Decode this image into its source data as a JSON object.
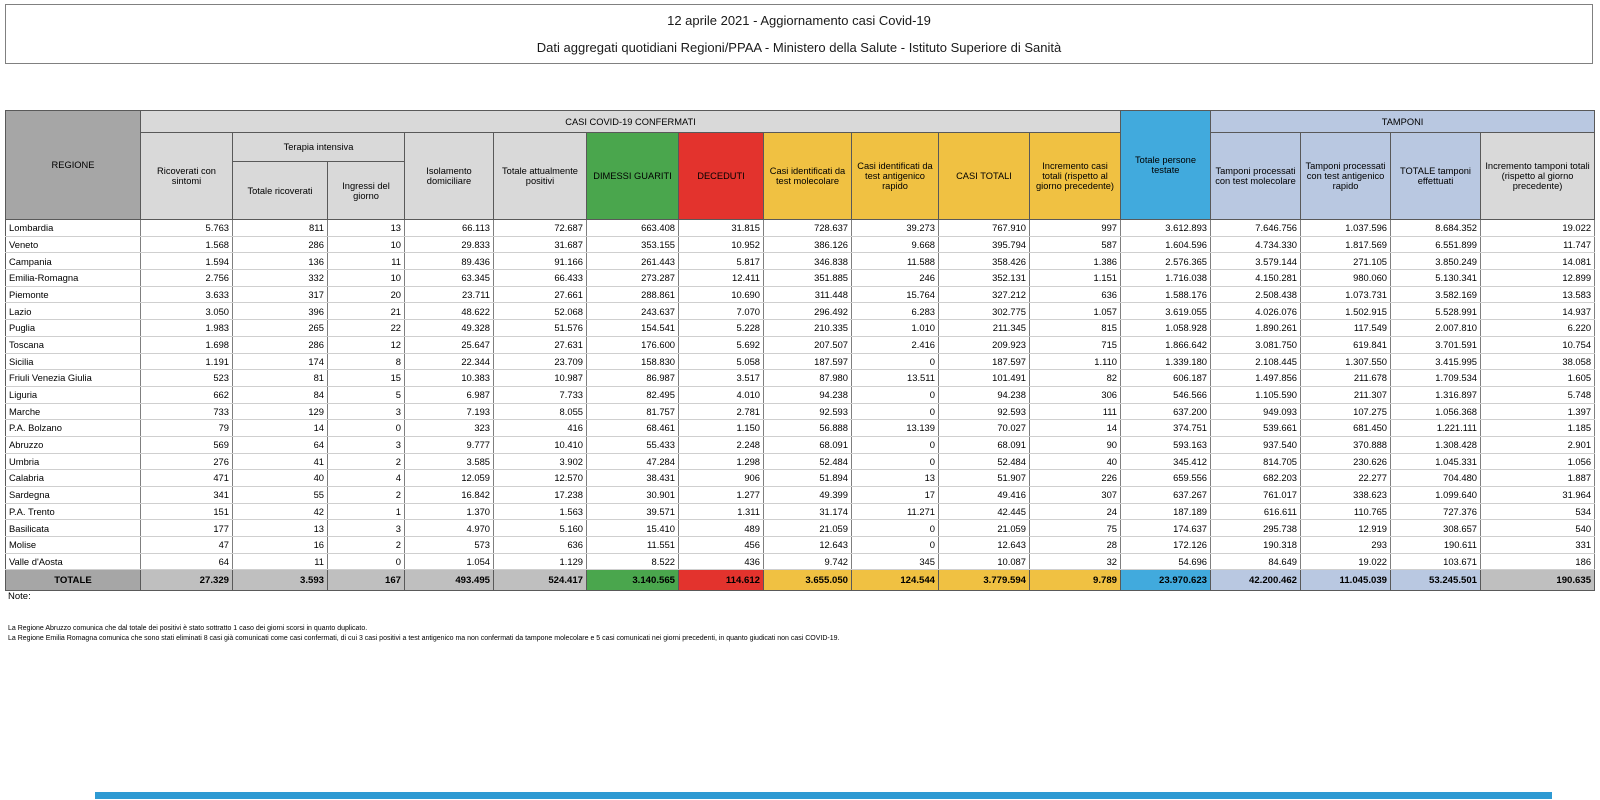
{
  "title": {
    "line1": "12 aprile 2021 - Aggiornamento casi Covid-19",
    "line2": "Dati aggregati quotidiani Regioni/PPAA - Ministero della Salute - Istituto Superiore di Sanità"
  },
  "colors": {
    "header_dark_gray": "#a6a6a6",
    "header_light_gray": "#d9d9d9",
    "green": "#4aa64d",
    "red": "#e3332d",
    "yellow": "#f0c142",
    "blue": "#41aadd",
    "periwinkle": "#b9c8e1",
    "totale_gray": "#bfbfbf",
    "bottom_bar_blue": "#2e9ad3"
  },
  "table": {
    "headers": {
      "regione": "REGIONE",
      "casi_group": "CASI COVID-19 CONFERMATI",
      "tamponi_group": "TAMPONI",
      "ricoverati": "Ricoverati con sintomi",
      "terapia_intensiva": "Terapia intensiva",
      "terapia_totale": "Totale ricoverati",
      "terapia_ingressi": "Ingressi del giorno",
      "isolamento": "Isolamento domiciliare",
      "attualmente_positivi": "Totale attualmente positivi",
      "dimessi": "DIMESSI GUARITI",
      "deceduti": "DECEDUTI",
      "casi_molecolare": "Casi identificati da test molecolare",
      "casi_antigenico": "Casi identificati da test antigenico rapido",
      "casi_totali": "CASI TOTALI",
      "incremento_casi": "Incremento casi totali (rispetto al giorno precedente)",
      "persone_testate": "Totale persone testate",
      "tamponi_molecolare": "Tamponi processati con test molecolare",
      "tamponi_antigenico": "Tamponi processati con test antigenico rapido",
      "tamponi_totale": "TOTALE tamponi effettuati",
      "incremento_tamponi": "Incremento tamponi totali (rispetto al giorno precedente)"
    },
    "rows": [
      {
        "regione": "Lombardia",
        "values": [
          "5.763",
          "811",
          "13",
          "66.113",
          "72.687",
          "663.408",
          "31.815",
          "728.637",
          "39.273",
          "767.910",
          "997",
          "3.612.893",
          "7.646.756",
          "1.037.596",
          "8.684.352",
          "19.022"
        ]
      },
      {
        "regione": "Veneto",
        "values": [
          "1.568",
          "286",
          "10",
          "29.833",
          "31.687",
          "353.155",
          "10.952",
          "386.126",
          "9.668",
          "395.794",
          "587",
          "1.604.596",
          "4.734.330",
          "1.817.569",
          "6.551.899",
          "11.747"
        ]
      },
      {
        "regione": "Campania",
        "values": [
          "1.594",
          "136",
          "11",
          "89.436",
          "91.166",
          "261.443",
          "5.817",
          "346.838",
          "11.588",
          "358.426",
          "1.386",
          "2.576.365",
          "3.579.144",
          "271.105",
          "3.850.249",
          "14.081"
        ]
      },
      {
        "regione": "Emilia-Romagna",
        "values": [
          "2.756",
          "332",
          "10",
          "63.345",
          "66.433",
          "273.287",
          "12.411",
          "351.885",
          "246",
          "352.131",
          "1.151",
          "1.716.038",
          "4.150.281",
          "980.060",
          "5.130.341",
          "12.899"
        ]
      },
      {
        "regione": "Piemonte",
        "values": [
          "3.633",
          "317",
          "20",
          "23.711",
          "27.661",
          "288.861",
          "10.690",
          "311.448",
          "15.764",
          "327.212",
          "636",
          "1.588.176",
          "2.508.438",
          "1.073.731",
          "3.582.169",
          "13.583"
        ]
      },
      {
        "regione": "Lazio",
        "values": [
          "3.050",
          "396",
          "21",
          "48.622",
          "52.068",
          "243.637",
          "7.070",
          "296.492",
          "6.283",
          "302.775",
          "1.057",
          "3.619.055",
          "4.026.076",
          "1.502.915",
          "5.528.991",
          "14.937"
        ]
      },
      {
        "regione": "Puglia",
        "values": [
          "1.983",
          "265",
          "22",
          "49.328",
          "51.576",
          "154.541",
          "5.228",
          "210.335",
          "1.010",
          "211.345",
          "815",
          "1.058.928",
          "1.890.261",
          "117.549",
          "2.007.810",
          "6.220"
        ]
      },
      {
        "regione": "Toscana",
        "values": [
          "1.698",
          "286",
          "12",
          "25.647",
          "27.631",
          "176.600",
          "5.692",
          "207.507",
          "2.416",
          "209.923",
          "715",
          "1.866.642",
          "3.081.750",
          "619.841",
          "3.701.591",
          "10.754"
        ]
      },
      {
        "regione": "Sicilia",
        "values": [
          "1.191",
          "174",
          "8",
          "22.344",
          "23.709",
          "158.830",
          "5.058",
          "187.597",
          "0",
          "187.597",
          "1.110",
          "1.339.180",
          "2.108.445",
          "1.307.550",
          "3.415.995",
          "38.058"
        ]
      },
      {
        "regione": "Friuli Venezia Giulia",
        "values": [
          "523",
          "81",
          "15",
          "10.383",
          "10.987",
          "86.987",
          "3.517",
          "87.980",
          "13.511",
          "101.491",
          "82",
          "606.187",
          "1.497.856",
          "211.678",
          "1.709.534",
          "1.605"
        ]
      },
      {
        "regione": "Liguria",
        "values": [
          "662",
          "84",
          "5",
          "6.987",
          "7.733",
          "82.495",
          "4.010",
          "94.238",
          "0",
          "94.238",
          "306",
          "546.566",
          "1.105.590",
          "211.307",
          "1.316.897",
          "5.748"
        ]
      },
      {
        "regione": "Marche",
        "values": [
          "733",
          "129",
          "3",
          "7.193",
          "8.055",
          "81.757",
          "2.781",
          "92.593",
          "0",
          "92.593",
          "111",
          "637.200",
          "949.093",
          "107.275",
          "1.056.368",
          "1.397"
        ]
      },
      {
        "regione": "P.A. Bolzano",
        "values": [
          "79",
          "14",
          "0",
          "323",
          "416",
          "68.461",
          "1.150",
          "56.888",
          "13.139",
          "70.027",
          "14",
          "374.751",
          "539.661",
          "681.450",
          "1.221.111",
          "1.185"
        ]
      },
      {
        "regione": "Abruzzo",
        "values": [
          "569",
          "64",
          "3",
          "9.777",
          "10.410",
          "55.433",
          "2.248",
          "68.091",
          "0",
          "68.091",
          "90",
          "593.163",
          "937.540",
          "370.888",
          "1.308.428",
          "2.901"
        ]
      },
      {
        "regione": "Umbria",
        "values": [
          "276",
          "41",
          "2",
          "3.585",
          "3.902",
          "47.284",
          "1.298",
          "52.484",
          "0",
          "52.484",
          "40",
          "345.412",
          "814.705",
          "230.626",
          "1.045.331",
          "1.056"
        ]
      },
      {
        "regione": "Calabria",
        "values": [
          "471",
          "40",
          "4",
          "12.059",
          "12.570",
          "38.431",
          "906",
          "51.894",
          "13",
          "51.907",
          "226",
          "659.556",
          "682.203",
          "22.277",
          "704.480",
          "1.887"
        ]
      },
      {
        "regione": "Sardegna",
        "values": [
          "341",
          "55",
          "2",
          "16.842",
          "17.238",
          "30.901",
          "1.277",
          "49.399",
          "17",
          "49.416",
          "307",
          "637.267",
          "761.017",
          "338.623",
          "1.099.640",
          "31.964"
        ]
      },
      {
        "regione": "P.A. Trento",
        "values": [
          "151",
          "42",
          "1",
          "1.370",
          "1.563",
          "39.571",
          "1.311",
          "31.174",
          "11.271",
          "42.445",
          "24",
          "187.189",
          "616.611",
          "110.765",
          "727.376",
          "534"
        ]
      },
      {
        "regione": "Basilicata",
        "values": [
          "177",
          "13",
          "3",
          "4.970",
          "5.160",
          "15.410",
          "489",
          "21.059",
          "0",
          "21.059",
          "75",
          "174.637",
          "295.738",
          "12.919",
          "308.657",
          "540"
        ]
      },
      {
        "regione": "Molise",
        "values": [
          "47",
          "16",
          "2",
          "573",
          "636",
          "11.551",
          "456",
          "12.643",
          "0",
          "12.643",
          "28",
          "172.126",
          "190.318",
          "293",
          "190.611",
          "331"
        ]
      },
      {
        "regione": "Valle d'Aosta",
        "values": [
          "64",
          "11",
          "0",
          "1.054",
          "1.129",
          "8.522",
          "436",
          "9.742",
          "345",
          "10.087",
          "32",
          "54.696",
          "84.649",
          "19.022",
          "103.671",
          "186"
        ]
      }
    ],
    "totale": {
      "regione": "TOTALE",
      "values": [
        "27.329",
        "3.593",
        "167",
        "493.495",
        "524.417",
        "3.140.565",
        "114.612",
        "3.655.050",
        "124.544",
        "3.779.594",
        "9.789",
        "23.970.623",
        "42.200.462",
        "11.045.039",
        "53.245.501",
        "190.635"
      ]
    }
  },
  "notes": {
    "label": "Note:",
    "lines": [
      "La Regione Abruzzo comunica che dal totale dei positivi è stato sottratto 1 caso dei giorni scorsi in quanto duplicato.",
      "La Regione Emilia Romagna comunica che sono stati eliminati 8 casi già comunicati come casi confermati, di cui 3 casi positivi a test antigenico ma non confermati da tampone molecolare e 5 casi comunicati nei giorni precedenti, in quanto giudicati non casi COVID-19."
    ]
  }
}
